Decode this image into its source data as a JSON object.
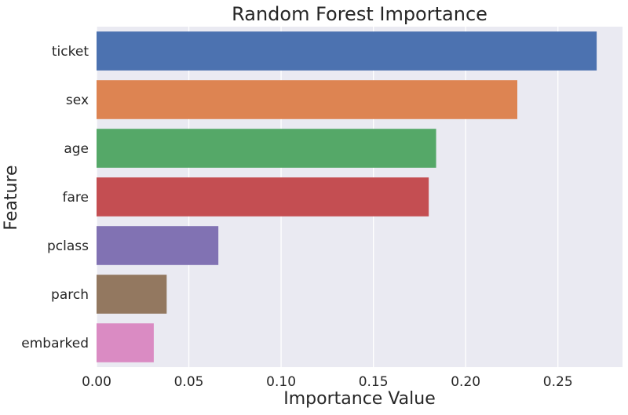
{
  "chart_data": {
    "type": "bar",
    "orientation": "horizontal",
    "title": "Random Forest Importance",
    "xlabel": "Importance Value",
    "ylabel": "Feature",
    "categories": [
      "ticket",
      "sex",
      "age",
      "fare",
      "pclass",
      "parch",
      "embarked"
    ],
    "values": [
      0.271,
      0.228,
      0.184,
      0.18,
      0.066,
      0.038,
      0.031
    ],
    "colors": [
      "#4c72b0",
      "#dd8452",
      "#55a868",
      "#c44e52",
      "#8172b3",
      "#937860",
      "#da8bc3"
    ],
    "xlim": [
      0,
      0.285
    ],
    "xticks": [
      0.0,
      0.05,
      0.1,
      0.15,
      0.2,
      0.25
    ],
    "xtick_labels": [
      "0.00",
      "0.05",
      "0.10",
      "0.15",
      "0.20",
      "0.25"
    ],
    "grid": true,
    "background": "#eaeaf2",
    "grid_color": "#ffffff"
  }
}
